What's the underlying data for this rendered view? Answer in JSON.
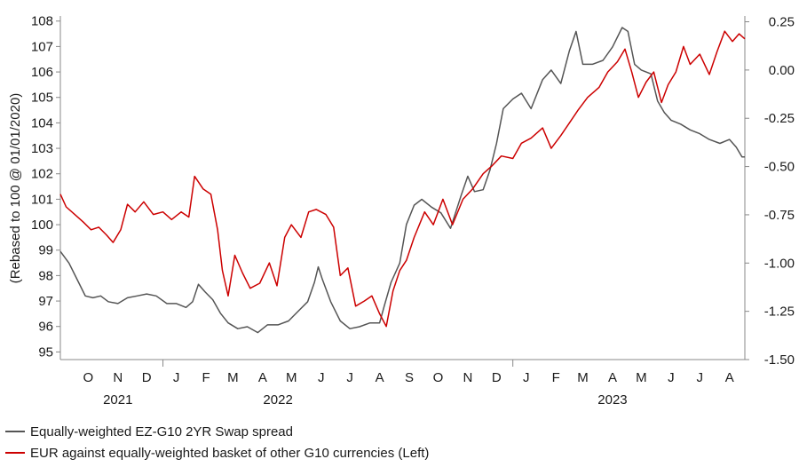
{
  "chart_data": {
    "type": "line",
    "title": "",
    "xlabel": "",
    "ylabel_left": "(Rebased to 100 @ 01/01/2020)",
    "ylabel_right": "",
    "grid": false,
    "legend_position": "bottom-left",
    "x_range": [
      "2021-09-16",
      "2023-08-31"
    ],
    "y_left": {
      "range": [
        94.7,
        108.2
      ],
      "ticks": [
        95,
        96,
        97,
        98,
        99,
        100,
        101,
        102,
        103,
        104,
        105,
        106,
        107,
        108
      ],
      "tick_labels": [
        "95",
        "96",
        "97",
        "98",
        "99",
        "100",
        "101",
        "102",
        "103",
        "104",
        "105",
        "106",
        "107",
        "108"
      ]
    },
    "y_right": {
      "range": [
        -1.5,
        0.28
      ],
      "ticks": [
        0.25,
        0.0,
        -0.25,
        -0.5,
        -0.75,
        -1.0,
        -1.25,
        -1.5
      ],
      "tick_labels": [
        "0.25",
        "0.00",
        "-0.25",
        "-0.50",
        "-0.75",
        "-1.00",
        "-1.25",
        "-1.50"
      ]
    },
    "month_labels": [
      {
        "label": "O",
        "date": "2021-10-15"
      },
      {
        "label": "N",
        "date": "2021-11-15"
      },
      {
        "label": "D",
        "date": "2021-12-15"
      },
      {
        "label": "J",
        "date": "2022-01-15"
      },
      {
        "label": "F",
        "date": "2022-02-15"
      },
      {
        "label": "M",
        "date": "2022-03-15"
      },
      {
        "label": "A",
        "date": "2022-04-15"
      },
      {
        "label": "M",
        "date": "2022-05-15"
      },
      {
        "label": "J",
        "date": "2022-06-15"
      },
      {
        "label": "J",
        "date": "2022-07-15"
      },
      {
        "label": "A",
        "date": "2022-08-15"
      },
      {
        "label": "S",
        "date": "2022-09-15"
      },
      {
        "label": "O",
        "date": "2022-10-15"
      },
      {
        "label": "N",
        "date": "2022-11-15"
      },
      {
        "label": "D",
        "date": "2022-12-15"
      },
      {
        "label": "J",
        "date": "2023-01-15"
      },
      {
        "label": "F",
        "date": "2023-02-15"
      },
      {
        "label": "M",
        "date": "2023-03-15"
      },
      {
        "label": "A",
        "date": "2023-04-15"
      },
      {
        "label": "M",
        "date": "2023-05-15"
      },
      {
        "label": "J",
        "date": "2023-06-15"
      },
      {
        "label": "J",
        "date": "2023-07-15"
      },
      {
        "label": "A",
        "date": "2023-08-15"
      }
    ],
    "year_labels": [
      {
        "label": "2021",
        "date": "2021-11-15"
      },
      {
        "label": "2022",
        "date": "2022-05-01"
      },
      {
        "label": "2023",
        "date": "2023-04-15"
      }
    ],
    "year_dividers": [
      "2022-01-01",
      "2023-01-01"
    ],
    "series": [
      {
        "name": "Equally-weighted EZ-G10 2YR Swap spread",
        "axis": "right",
        "color": "#555555",
        "points": [
          [
            "2021-09-16",
            -0.94
          ],
          [
            "2021-09-25",
            -1.0
          ],
          [
            "2021-10-05",
            -1.1
          ],
          [
            "2021-10-12",
            -1.17
          ],
          [
            "2021-10-20",
            -1.18
          ],
          [
            "2021-10-28",
            -1.17
          ],
          [
            "2021-11-05",
            -1.2
          ],
          [
            "2021-11-15",
            -1.21
          ],
          [
            "2021-11-25",
            -1.18
          ],
          [
            "2021-12-05",
            -1.17
          ],
          [
            "2021-12-15",
            -1.16
          ],
          [
            "2021-12-25",
            -1.17
          ],
          [
            "2022-01-05",
            -1.21
          ],
          [
            "2022-01-15",
            -1.21
          ],
          [
            "2022-01-25",
            -1.23
          ],
          [
            "2022-02-01",
            -1.2
          ],
          [
            "2022-02-07",
            -1.11
          ],
          [
            "2022-02-14",
            -1.15
          ],
          [
            "2022-02-22",
            -1.19
          ],
          [
            "2022-03-02",
            -1.26
          ],
          [
            "2022-03-10",
            -1.31
          ],
          [
            "2022-03-20",
            -1.34
          ],
          [
            "2022-03-30",
            -1.33
          ],
          [
            "2022-04-10",
            -1.36
          ],
          [
            "2022-04-20",
            -1.32
          ],
          [
            "2022-05-01",
            -1.32
          ],
          [
            "2022-05-12",
            -1.3
          ],
          [
            "2022-05-22",
            -1.25
          ],
          [
            "2022-06-01",
            -1.2
          ],
          [
            "2022-06-08",
            -1.1
          ],
          [
            "2022-06-12",
            -1.02
          ],
          [
            "2022-06-16",
            -1.08
          ],
          [
            "2022-06-25",
            -1.2
          ],
          [
            "2022-07-05",
            -1.3
          ],
          [
            "2022-07-15",
            -1.34
          ],
          [
            "2022-07-25",
            -1.33
          ],
          [
            "2022-08-05",
            -1.31
          ],
          [
            "2022-08-15",
            -1.31
          ],
          [
            "2022-08-20",
            -1.22
          ],
          [
            "2022-08-27",
            -1.1
          ],
          [
            "2022-09-05",
            -1.0
          ],
          [
            "2022-09-12",
            -0.8
          ],
          [
            "2022-09-20",
            -0.7
          ],
          [
            "2022-09-28",
            -0.67
          ],
          [
            "2022-10-08",
            -0.71
          ],
          [
            "2022-10-18",
            -0.74
          ],
          [
            "2022-10-28",
            -0.82
          ],
          [
            "2022-11-08",
            -0.65
          ],
          [
            "2022-11-15",
            -0.55
          ],
          [
            "2022-11-22",
            -0.63
          ],
          [
            "2022-12-01",
            -0.62
          ],
          [
            "2022-12-08",
            -0.52
          ],
          [
            "2022-12-15",
            -0.38
          ],
          [
            "2022-12-22",
            -0.2
          ],
          [
            "2023-01-01",
            -0.15
          ],
          [
            "2023-01-10",
            -0.12
          ],
          [
            "2023-01-20",
            -0.2
          ],
          [
            "2023-02-01",
            -0.05
          ],
          [
            "2023-02-10",
            0.0
          ],
          [
            "2023-02-20",
            -0.07
          ],
          [
            "2023-03-01",
            0.1
          ],
          [
            "2023-03-08",
            0.2
          ],
          [
            "2023-03-15",
            0.03
          ],
          [
            "2023-03-25",
            0.03
          ],
          [
            "2023-04-05",
            0.05
          ],
          [
            "2023-04-15",
            0.12
          ],
          [
            "2023-04-25",
            0.22
          ],
          [
            "2023-05-01",
            0.2
          ],
          [
            "2023-05-08",
            0.03
          ],
          [
            "2023-05-15",
            0.0
          ],
          [
            "2023-05-25",
            -0.02
          ],
          [
            "2023-06-01",
            -0.16
          ],
          [
            "2023-06-08",
            -0.22
          ],
          [
            "2023-06-15",
            -0.26
          ],
          [
            "2023-06-25",
            -0.28
          ],
          [
            "2023-07-05",
            -0.31
          ],
          [
            "2023-07-15",
            -0.33
          ],
          [
            "2023-07-25",
            -0.36
          ],
          [
            "2023-08-05",
            -0.38
          ],
          [
            "2023-08-15",
            -0.36
          ],
          [
            "2023-08-22",
            -0.4
          ],
          [
            "2023-08-28",
            -0.45
          ],
          [
            "2023-08-31",
            -0.45
          ]
        ]
      },
      {
        "name": "EUR against equally-weighted basket of other G10 currencies (Left)",
        "axis": "left",
        "color": "#cc0000",
        "points": [
          [
            "2021-09-16",
            101.2
          ],
          [
            "2021-09-22",
            100.7
          ],
          [
            "2021-10-01",
            100.4
          ],
          [
            "2021-10-10",
            100.1
          ],
          [
            "2021-10-18",
            99.8
          ],
          [
            "2021-10-26",
            99.9
          ],
          [
            "2021-11-03",
            99.6
          ],
          [
            "2021-11-10",
            99.3
          ],
          [
            "2021-11-18",
            99.8
          ],
          [
            "2021-11-25",
            100.8
          ],
          [
            "2021-12-03",
            100.5
          ],
          [
            "2021-12-12",
            100.9
          ],
          [
            "2021-12-22",
            100.4
          ],
          [
            "2022-01-01",
            100.5
          ],
          [
            "2022-01-10",
            100.2
          ],
          [
            "2022-01-20",
            100.5
          ],
          [
            "2022-01-28",
            100.3
          ],
          [
            "2022-02-03",
            101.9
          ],
          [
            "2022-02-12",
            101.4
          ],
          [
            "2022-02-20",
            101.2
          ],
          [
            "2022-02-27",
            99.8
          ],
          [
            "2022-03-04",
            98.2
          ],
          [
            "2022-03-10",
            97.2
          ],
          [
            "2022-03-17",
            98.8
          ],
          [
            "2022-03-25",
            98.1
          ],
          [
            "2022-04-02",
            97.5
          ],
          [
            "2022-04-12",
            97.7
          ],
          [
            "2022-04-22",
            98.5
          ],
          [
            "2022-04-30",
            97.6
          ],
          [
            "2022-05-08",
            99.5
          ],
          [
            "2022-05-15",
            100.0
          ],
          [
            "2022-05-25",
            99.5
          ],
          [
            "2022-06-02",
            100.5
          ],
          [
            "2022-06-10",
            100.6
          ],
          [
            "2022-06-20",
            100.4
          ],
          [
            "2022-06-28",
            99.9
          ],
          [
            "2022-07-05",
            98.0
          ],
          [
            "2022-07-13",
            98.3
          ],
          [
            "2022-07-21",
            96.8
          ],
          [
            "2022-07-30",
            97.0
          ],
          [
            "2022-08-07",
            97.2
          ],
          [
            "2022-08-15",
            96.5
          ],
          [
            "2022-08-22",
            96.0
          ],
          [
            "2022-08-29",
            97.4
          ],
          [
            "2022-09-05",
            98.2
          ],
          [
            "2022-09-12",
            98.6
          ],
          [
            "2022-09-20",
            99.5
          ],
          [
            "2022-10-01",
            100.5
          ],
          [
            "2022-10-10",
            100.0
          ],
          [
            "2022-10-20",
            101.0
          ],
          [
            "2022-10-30",
            100.0
          ],
          [
            "2022-11-10",
            101.0
          ],
          [
            "2022-11-20",
            101.4
          ],
          [
            "2022-12-01",
            102.0
          ],
          [
            "2022-12-10",
            102.3
          ],
          [
            "2022-12-20",
            102.7
          ],
          [
            "2023-01-01",
            102.6
          ],
          [
            "2023-01-10",
            103.2
          ],
          [
            "2023-01-20",
            103.4
          ],
          [
            "2023-02-01",
            103.8
          ],
          [
            "2023-02-10",
            103.0
          ],
          [
            "2023-02-20",
            103.5
          ],
          [
            "2023-03-01",
            104.0
          ],
          [
            "2023-03-10",
            104.5
          ],
          [
            "2023-03-20",
            105.0
          ],
          [
            "2023-04-01",
            105.4
          ],
          [
            "2023-04-10",
            106.0
          ],
          [
            "2023-04-20",
            106.4
          ],
          [
            "2023-04-28",
            106.9
          ],
          [
            "2023-05-05",
            106.0
          ],
          [
            "2023-05-12",
            105.0
          ],
          [
            "2023-05-20",
            105.6
          ],
          [
            "2023-05-28",
            106.0
          ],
          [
            "2023-06-05",
            104.8
          ],
          [
            "2023-06-12",
            105.5
          ],
          [
            "2023-06-20",
            106.0
          ],
          [
            "2023-06-28",
            107.0
          ],
          [
            "2023-07-05",
            106.3
          ],
          [
            "2023-07-15",
            106.7
          ],
          [
            "2023-07-25",
            105.9
          ],
          [
            "2023-08-02",
            106.8
          ],
          [
            "2023-08-10",
            107.6
          ],
          [
            "2023-08-18",
            107.2
          ],
          [
            "2023-08-25",
            107.5
          ],
          [
            "2023-08-31",
            107.3
          ]
        ]
      }
    ]
  }
}
